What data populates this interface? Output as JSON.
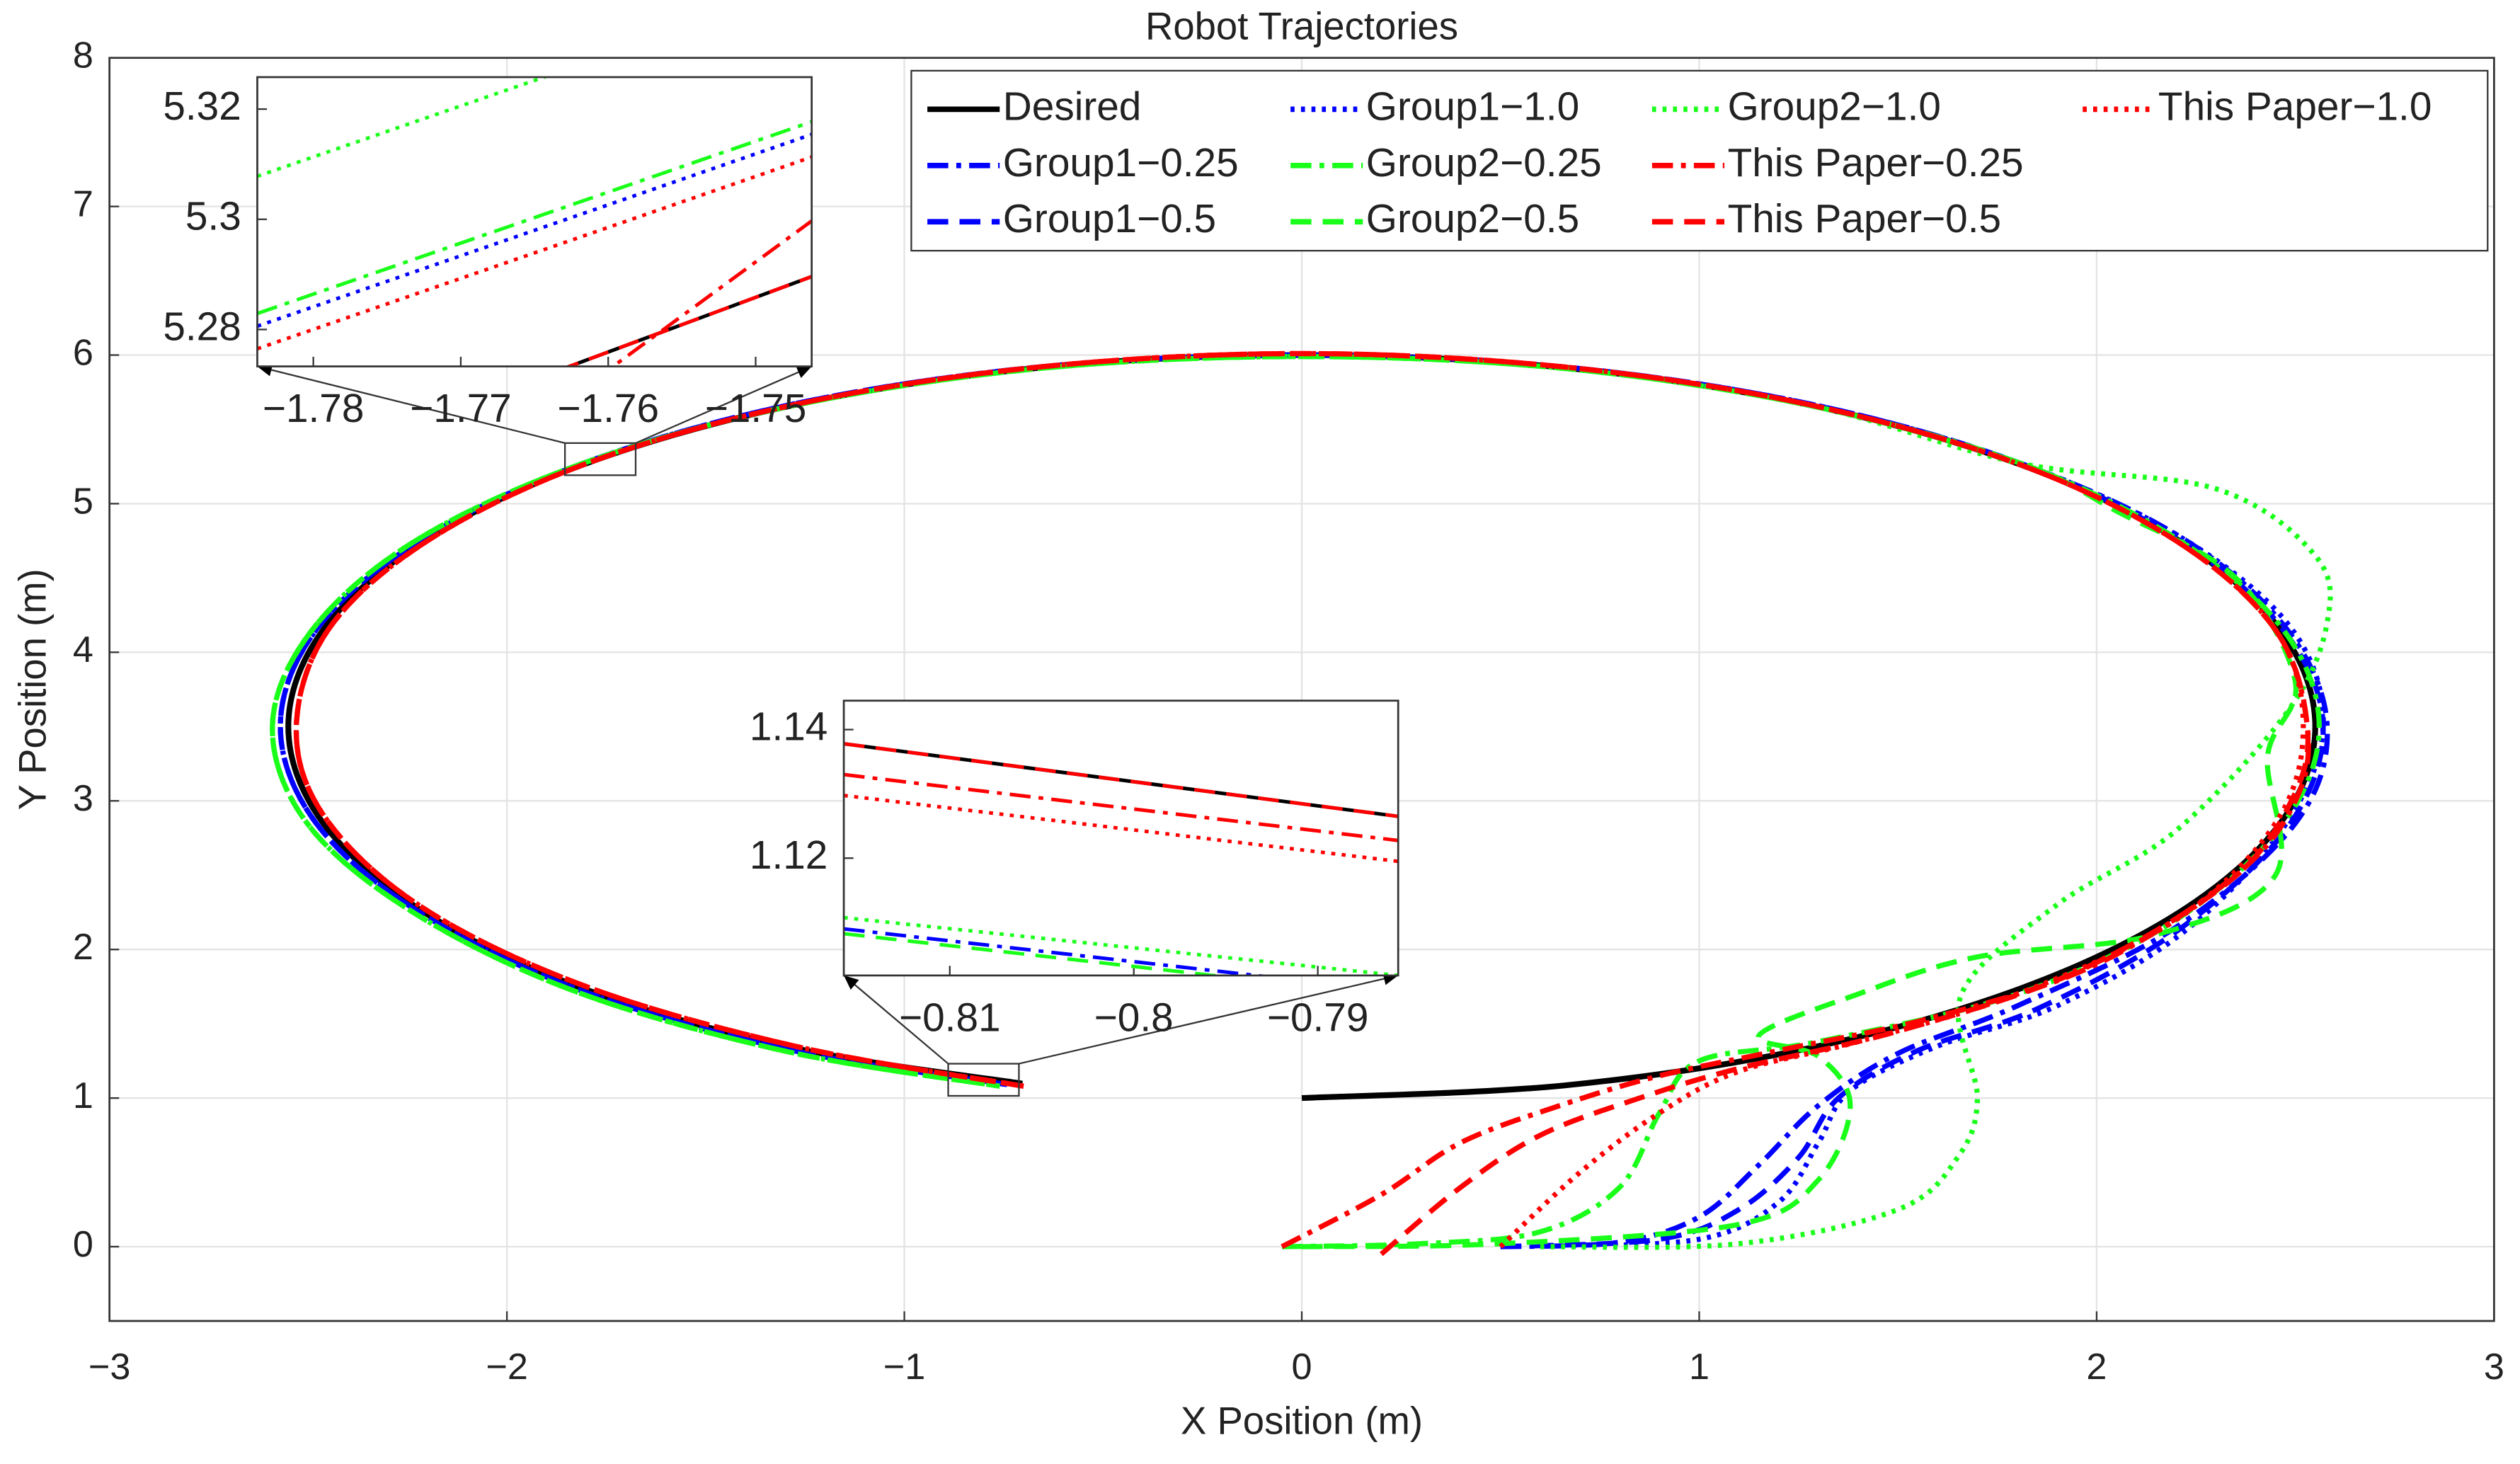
{
  "chart_data": [
    {
      "type": "line",
      "title": "Robot Trajectories",
      "x_label": "X Position (m)",
      "y_label": "Y Position (m)",
      "xlim": [
        -3,
        3
      ],
      "ylim": [
        -0.5,
        8
      ],
      "xticks": [
        {
          "value": -3,
          "label": "−3"
        },
        {
          "value": -2,
          "label": "−2"
        },
        {
          "value": -1,
          "label": "−1"
        },
        0,
        1,
        2,
        3
      ],
      "yticks": [
        0,
        1,
        2,
        3,
        4,
        5,
        6,
        7,
        8
      ],
      "grid": true,
      "legend": "top-right",
      "series": [
        {
          "name": "Desired",
          "color": "#000000",
          "style": "solid",
          "x": [
            0,
            0.66,
            1.275,
            1.803,
            2.208,
            2.463,
            2.55,
            2.463,
            2.208,
            1.803,
            1.275,
            0.66,
            0,
            -0.66,
            -1.275,
            -1.803,
            -2.208,
            -2.463,
            -2.55,
            -2.463,
            -2.208,
            -1.803,
            -1.275,
            -0.703
          ],
          "values": [
            1,
            1.085,
            1.335,
            1.732,
            2.25,
            2.853,
            3.5,
            4.147,
            4.75,
            5.268,
            5.665,
            5.915,
            6,
            5.915,
            5.665,
            5.268,
            4.75,
            4.147,
            3.5,
            2.853,
            2.25,
            1.732,
            1.335,
            1.097
          ]
        },
        {
          "name": "Group1−0.25",
          "color": "#0000ff",
          "style": "dashdot",
          "x": [
            0.5,
            0.8,
            1.0,
            1.15,
            1.3,
            1.5,
            1.8,
            2.2,
            2.5,
            2.58,
            2.48,
            2.22,
            1.81,
            1.28,
            0.66,
            0,
            -0.66,
            -1.28,
            -1.81,
            -2.22,
            -2.48,
            -2.57,
            -2.48,
            -2.22,
            -1.81,
            -1.28,
            -0.74
          ],
          "values": [
            0,
            0.03,
            0.2,
            0.55,
            0.95,
            1.3,
            1.62,
            2.15,
            2.85,
            3.5,
            4.15,
            4.76,
            5.27,
            5.67,
            5.92,
            6,
            5.92,
            5.67,
            5.27,
            4.75,
            4.15,
            3.5,
            2.85,
            2.25,
            1.72,
            1.32,
            1.09
          ]
        },
        {
          "name": "Group1−0.5",
          "color": "#0000ff",
          "style": "dashed",
          "x": [
            0.5,
            0.9,
            1.1,
            1.25,
            1.35,
            1.55,
            1.85,
            2.2,
            2.48,
            2.57,
            2.47,
            2.21,
            1.81,
            1.28,
            0.66,
            0,
            -0.66,
            -1.28,
            -1.81,
            -2.22,
            -2.48,
            -2.57,
            -2.48,
            -2.22,
            -1.81,
            -1.28,
            -0.74
          ],
          "values": [
            0,
            0.05,
            0.25,
            0.6,
            1.0,
            1.32,
            1.6,
            2.12,
            2.82,
            3.5,
            4.15,
            4.75,
            5.27,
            5.67,
            5.92,
            6,
            5.92,
            5.67,
            5.27,
            4.75,
            4.15,
            3.5,
            2.85,
            2.25,
            1.72,
            1.32,
            1.09
          ]
        },
        {
          "name": "Group1−1.0",
          "color": "#0000ff",
          "style": "dotted",
          "x": [
            0.6,
            1.0,
            1.2,
            1.3,
            1.38,
            1.6,
            1.9,
            2.22,
            2.47,
            2.57,
            2.49,
            2.22,
            1.81,
            1.28,
            0.66,
            0,
            -0.66,
            -1.28,
            -1.81,
            -2.22,
            -2.48,
            -2.57,
            -2.48,
            -2.22,
            -1.81,
            -1.28,
            -0.74
          ],
          "values": [
            0,
            0.05,
            0.3,
            0.7,
            1.05,
            1.35,
            1.62,
            2.12,
            2.82,
            3.5,
            4.16,
            4.76,
            5.27,
            5.67,
            5.92,
            6,
            5.92,
            5.67,
            5.27,
            4.75,
            4.15,
            3.5,
            2.85,
            2.25,
            1.72,
            1.32,
            1.09
          ]
        },
        {
          "name": "Group2−0.25",
          "color": "#1aff1a",
          "style": "dashdot",
          "x": [
            -0.05,
            0.3,
            0.6,
            0.8,
            0.9,
            1.0,
            1.3,
            1.8,
            2.2,
            2.47,
            2.56,
            2.47,
            2.21,
            1.81,
            1.28,
            0.66,
            0,
            -0.66,
            -1.28,
            -1.81,
            -2.23,
            -2.49,
            -2.59,
            -2.5,
            -2.23,
            -1.82,
            -1.29,
            -0.76
          ],
          "values": [
            0,
            0.02,
            0.1,
            0.4,
            0.9,
            1.25,
            1.38,
            1.7,
            2.2,
            2.85,
            3.5,
            4.15,
            4.75,
            5.27,
            5.66,
            5.91,
            5.99,
            5.91,
            5.66,
            5.27,
            4.75,
            4.15,
            3.5,
            2.84,
            2.24,
            1.71,
            1.31,
            1.08
          ]
        },
        {
          "name": "Group2−0.5",
          "color": "#1aff1a",
          "style": "dashed",
          "x": [
            0,
            0.5,
            1.1,
            1.3,
            1.38,
            1.3,
            1.15,
            1.4,
            1.7,
            2.15,
            2.45,
            2.43,
            2.5,
            2.35,
            2.05,
            1.81,
            1.28,
            0.66,
            0,
            -0.66,
            -1.28,
            -1.81,
            -2.23,
            -2.49,
            -2.59,
            -2.5,
            -2.23,
            -1.82,
            -1.29,
            -0.76
          ],
          "values": [
            0,
            0.02,
            0.15,
            0.45,
            0.95,
            1.28,
            1.42,
            1.7,
            1.95,
            2.1,
            2.5,
            3.3,
            3.8,
            4.5,
            4.95,
            5.27,
            5.66,
            5.91,
            5.99,
            5.91,
            5.66,
            5.27,
            4.75,
            4.15,
            3.5,
            2.84,
            2.24,
            1.71,
            1.31,
            1.08
          ]
        },
        {
          "name": "Group2−1.0",
          "color": "#1aff1a",
          "style": "dotted",
          "x": [
            0.6,
            1.1,
            1.5,
            1.65,
            1.7,
            1.66,
            1.9,
            2.2,
            2.48,
            2.58,
            2.55,
            2.3,
            1.81,
            1.28,
            0.66,
            0,
            -0.66,
            -1.28,
            -1.81,
            -2.23,
            -2.49,
            -2.59,
            -2.5,
            -2.23,
            -1.82,
            -1.29,
            -0.76
          ],
          "values": [
            0,
            0.02,
            0.25,
            0.6,
            1.0,
            1.7,
            2.3,
            2.8,
            3.6,
            4.2,
            4.65,
            5.1,
            5.27,
            5.66,
            5.91,
            5.99,
            5.91,
            5.66,
            5.27,
            4.75,
            4.15,
            3.5,
            2.84,
            2.24,
            1.71,
            1.31,
            1.08
          ]
        },
        {
          "name": "This Paper−0.25",
          "color": "#ff0000",
          "style": "dashdot",
          "x": [
            -0.05,
            0.2,
            0.4,
            0.65,
            0.9,
            1.2,
            1.6,
            2.0,
            2.35,
            2.5,
            2.53,
            2.45,
            2.2,
            1.8,
            1.27,
            0.66,
            0,
            -0.66,
            -1.27,
            -1.8,
            -2.2,
            -2.45,
            -2.53,
            -2.45,
            -2.2,
            -1.79,
            -1.26,
            -0.7
          ],
          "values": [
            0,
            0.35,
            0.7,
            0.95,
            1.15,
            1.32,
            1.55,
            1.9,
            2.5,
            3.0,
            3.5,
            4.15,
            4.75,
            5.27,
            5.67,
            5.92,
            6.01,
            5.92,
            5.67,
            5.27,
            4.75,
            4.15,
            3.47,
            2.86,
            2.26,
            1.74,
            1.34,
            1.08
          ]
        },
        {
          "name": "This Paper−0.5",
          "color": "#ff0000",
          "style": "dashed",
          "x": [
            0.2,
            0.4,
            0.6,
            0.85,
            1.1,
            1.5,
            1.95,
            2.33,
            2.49,
            2.53,
            2.45,
            2.2,
            1.8,
            1.27,
            0.66,
            0,
            -0.66,
            -1.27,
            -1.8,
            -2.2,
            -2.45,
            -2.53,
            -2.45,
            -2.2,
            -1.79,
            -1.26,
            -0.7
          ],
          "values": [
            -0.05,
            0.4,
            0.75,
            1.0,
            1.2,
            1.45,
            1.85,
            2.45,
            3.0,
            3.5,
            4.15,
            4.75,
            5.27,
            5.67,
            5.92,
            6.01,
            5.92,
            5.67,
            5.27,
            4.75,
            4.15,
            3.47,
            2.86,
            2.26,
            1.74,
            1.34,
            1.08
          ]
        },
        {
          "name": "This Paper−1.0",
          "color": "#ff0000",
          "style": "dotted",
          "x": [
            0.5,
            0.7,
            0.9,
            1.1,
            1.4,
            1.8,
            2.2,
            2.45,
            2.52,
            2.45,
            2.2,
            1.8,
            1.27,
            0.66,
            0,
            -0.66,
            -1.27,
            -1.8,
            -2.2,
            -2.45,
            -2.53,
            -2.45,
            -2.2,
            -1.79,
            -1.26,
            -0.7
          ],
          "values": [
            0,
            0.5,
            0.9,
            1.18,
            1.38,
            1.7,
            2.2,
            2.85,
            3.5,
            4.15,
            4.75,
            5.27,
            5.67,
            5.92,
            6.01,
            5.92,
            5.67,
            5.27,
            4.75,
            4.15,
            3.47,
            2.86,
            2.26,
            1.74,
            1.34,
            1.08
          ]
        }
      ]
    },
    {
      "type": "line",
      "xlim": [
        -1.7838,
        -1.7462
      ],
      "ylim": [
        5.2733,
        5.3258
      ],
      "xticks": [
        {
          "value": -1.78,
          "label": "−1.78"
        },
        {
          "value": -1.77,
          "label": "−1.77"
        },
        {
          "value": -1.76,
          "label": "−1.76"
        },
        {
          "value": -1.75,
          "label": "−1.75"
        }
      ],
      "yticks": [
        5.28,
        5.3,
        5.32
      ],
      "grid": false,
      "series": [
        {
          "color": "#1aff1a",
          "style": "dotted",
          "x": [
            -1.7838,
            -1.7462
          ],
          "values": [
            5.3078,
            5.3426
          ]
        },
        {
          "color": "#1aff1a",
          "style": "dashdot",
          "x": [
            -1.7838,
            -1.7462
          ],
          "values": [
            5.2829,
            5.3177
          ]
        },
        {
          "color": "#0000ff",
          "style": "dotted",
          "x": [
            -1.7838,
            -1.7462
          ],
          "values": [
            5.2806,
            5.3154
          ]
        },
        {
          "color": "#ff0000",
          "style": "dotted",
          "x": [
            -1.7838,
            -1.7462
          ],
          "values": [
            5.2765,
            5.3113
          ]
        },
        {
          "color": "#ff0000",
          "style": "dashdot",
          "x": [
            -1.7838,
            -1.7462
          ],
          "values": [
            5.226,
            5.2997
          ]
        },
        {
          "color": "#000000",
          "style": "solid",
          "x": [
            -1.7838,
            -1.7462
          ],
          "values": [
            5.2523,
            5.2896
          ]
        },
        {
          "color": "#ff0000",
          "style": "dashed",
          "x": [
            -1.7838,
            -1.7462
          ],
          "values": [
            5.2523,
            5.2896
          ]
        }
      ]
    },
    {
      "type": "line",
      "xlim": [
        -0.81576,
        -0.78563
      ],
      "ylim": [
        1.10175,
        1.1445
      ],
      "xticks": [
        {
          "value": -0.81,
          "label": "−0.81"
        },
        {
          "value": -0.8,
          "label": "−0.8"
        },
        {
          "value": -0.79,
          "label": "−0.79"
        }
      ],
      "yticks": [
        1.12,
        1.14
      ],
      "grid": false,
      "series": [
        {
          "color": "#000000",
          "style": "solid",
          "x": [
            -0.81576,
            -0.78563
          ],
          "values": [
            1.1378,
            1.1265
          ]
        },
        {
          "color": "#ff0000",
          "style": "dashed",
          "x": [
            -0.81576,
            -0.78563
          ],
          "values": [
            1.1378,
            1.1265
          ]
        },
        {
          "color": "#ff0000",
          "style": "dashdot",
          "x": [
            -0.81576,
            -0.78563
          ],
          "values": [
            1.133,
            1.12275
          ]
        },
        {
          "color": "#ff0000",
          "style": "dotted",
          "x": [
            -0.81576,
            -0.78563
          ],
          "values": [
            1.12975,
            1.1195
          ]
        },
        {
          "color": "#1aff1a",
          "style": "dotted",
          "x": [
            -0.81576,
            -0.78563
          ],
          "values": [
            1.11075,
            1.10175
          ]
        },
        {
          "color": "#0000ff",
          "style": "dashdot",
          "x": [
            -0.81576,
            -0.78563
          ],
          "values": [
            1.109,
            1.09925
          ]
        },
        {
          "color": "#1aff1a",
          "style": "dashed",
          "x": [
            -0.81576,
            -0.78563
          ],
          "values": [
            1.10825,
            1.0985
          ]
        }
      ]
    }
  ]
}
